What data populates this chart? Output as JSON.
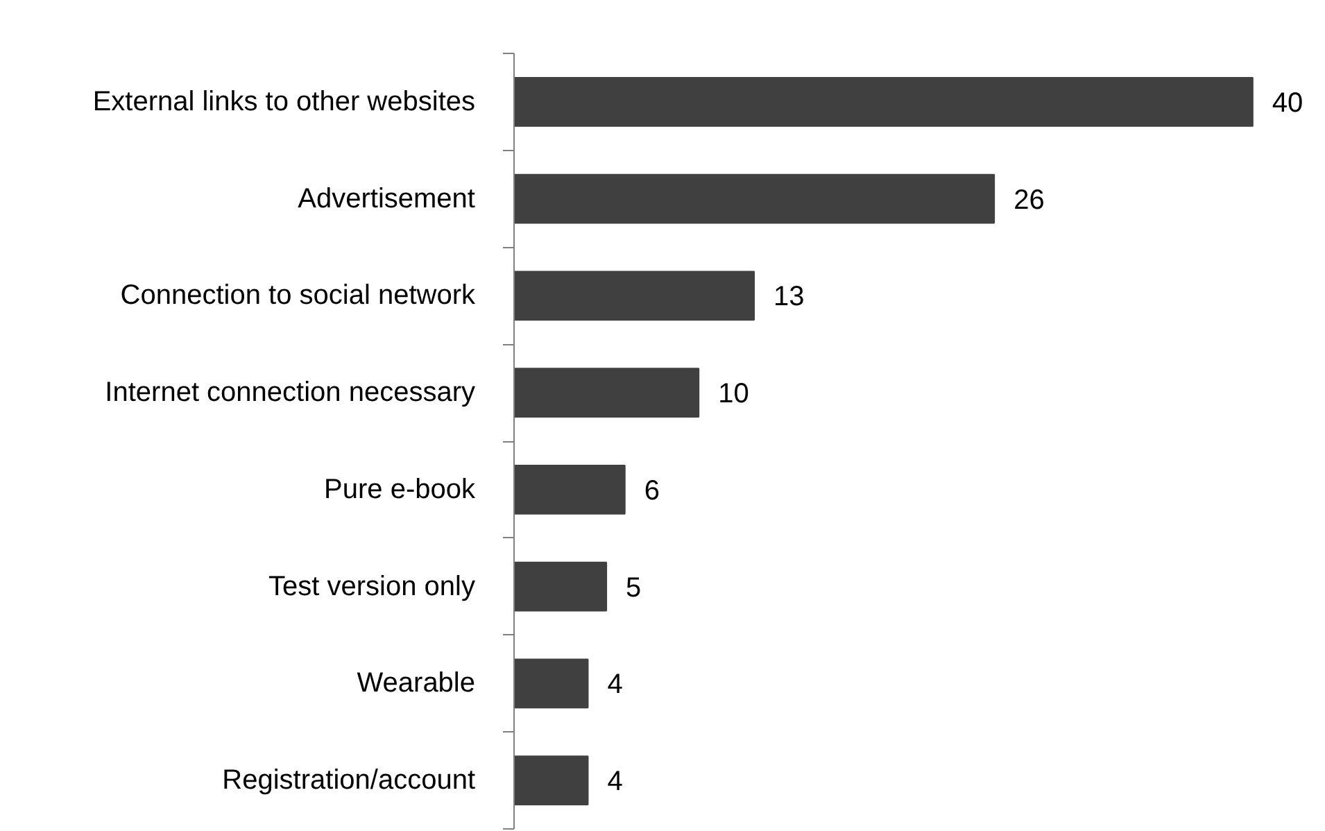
{
  "chart_data": {
    "type": "bar",
    "orientation": "horizontal",
    "categories": [
      "External links to other websites",
      "Advertisement",
      "Connection to social network",
      "Internet connection necessary",
      "Pure e-book",
      "Test version only",
      "Wearable",
      "Registration/account"
    ],
    "values": [
      40,
      26,
      13,
      10,
      6,
      5,
      4,
      4
    ],
    "color": "#404040",
    "data_labels": true,
    "grid": false
  }
}
